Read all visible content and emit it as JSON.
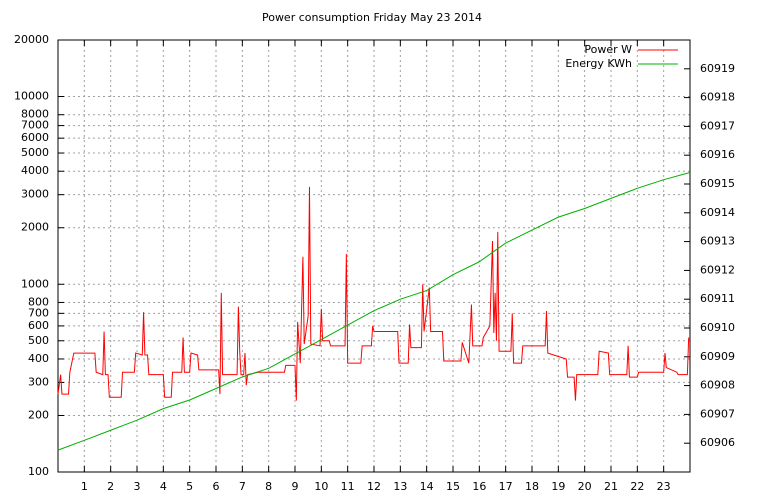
{
  "chart_data": {
    "type": "line",
    "title": "Power consumption Friday May 23 2014",
    "xlim": [
      0,
      24
    ],
    "xticks": [
      1,
      2,
      3,
      4,
      5,
      6,
      7,
      8,
      9,
      10,
      11,
      12,
      13,
      14,
      15,
      16,
      17,
      18,
      19,
      20,
      21,
      22,
      23
    ],
    "ylim": [
      100,
      20000
    ],
    "ylog": true,
    "yticks": [
      100,
      200,
      300,
      400,
      500,
      600,
      700,
      800,
      1000,
      2000,
      3000,
      4000,
      5000,
      6000,
      7000,
      8000,
      10000,
      20000
    ],
    "y2lim": [
      60905,
      60920
    ],
    "y2ticks": [
      60906,
      60907,
      60908,
      60909,
      60910,
      60911,
      60912,
      60913,
      60914,
      60915,
      60916,
      60917,
      60918,
      60919
    ],
    "grid": true,
    "legend": "top-right",
    "series": [
      {
        "name": "Power W",
        "color": "#ff0000",
        "x": [
          0.0,
          0.1,
          0.15,
          0.4,
          0.45,
          0.6,
          1.4,
          1.45,
          1.7,
          1.75,
          1.8,
          1.9,
          1.95,
          2.4,
          2.45,
          2.9,
          2.95,
          3.2,
          3.25,
          3.3,
          3.4,
          3.45,
          4.0,
          4.05,
          4.3,
          4.35,
          4.7,
          4.75,
          4.8,
          5.0,
          5.05,
          5.3,
          5.35,
          6.1,
          6.15,
          6.2,
          6.25,
          6.8,
          6.85,
          6.9,
          6.95,
          7.05,
          7.1,
          7.15,
          7.2,
          7.6,
          8.6,
          8.65,
          9.0,
          9.05,
          9.1,
          9.2,
          9.3,
          9.35,
          9.5,
          9.55,
          9.6,
          9.95,
          10.0,
          10.05,
          10.3,
          10.35,
          10.9,
          10.95,
          11.0,
          11.5,
          11.55,
          11.9,
          11.95,
          12.0,
          12.9,
          12.95,
          13.3,
          13.35,
          13.4,
          13.8,
          13.85,
          13.9,
          14.1,
          14.15,
          14.6,
          14.65,
          15.3,
          15.35,
          15.6,
          15.7,
          15.75,
          16.1,
          16.15,
          16.4,
          16.5,
          16.55,
          16.6,
          16.65,
          16.7,
          16.75,
          17.2,
          17.25,
          17.3,
          17.6,
          17.65,
          18.5,
          18.55,
          18.6,
          19.3,
          19.35,
          19.6,
          19.65,
          19.7,
          20.5,
          20.55,
          20.9,
          20.95,
          21.6,
          21.65,
          21.7,
          22.0,
          22.05,
          23.0,
          23.05,
          23.1,
          23.5,
          23.55,
          23.9,
          23.95
        ],
        "values": [
          260,
          330,
          260,
          260,
          340,
          430,
          430,
          340,
          330,
          560,
          330,
          330,
          250,
          250,
          340,
          340,
          430,
          420,
          710,
          420,
          420,
          330,
          330,
          250,
          250,
          340,
          340,
          520,
          340,
          340,
          430,
          420,
          350,
          350,
          260,
          900,
          330,
          330,
          760,
          440,
          330,
          330,
          430,
          290,
          330,
          340,
          340,
          370,
          370,
          240,
          630,
          380,
          1400,
          480,
          680,
          3300,
          480,
          470,
          740,
          500,
          500,
          470,
          470,
          1450,
          380,
          380,
          470,
          470,
          600,
          560,
          560,
          380,
          380,
          610,
          460,
          460,
          1000,
          560,
          960,
          560,
          560,
          390,
          390,
          490,
          380,
          780,
          470,
          470,
          520,
          600,
          1700,
          550,
          900,
          500,
          1900,
          440,
          440,
          700,
          380,
          380,
          470,
          470,
          720,
          430,
          400,
          320,
          320,
          240,
          330,
          330,
          440,
          430,
          330,
          330,
          470,
          320,
          320,
          340,
          340,
          430,
          360,
          340,
          330,
          330,
          520
        ]
      },
      {
        "name": "Energy KWh",
        "color": "#00b000",
        "axis": "y2",
        "x": [
          0,
          1,
          2,
          3,
          4,
          5,
          6,
          7,
          8,
          9,
          10,
          11,
          12,
          13,
          14,
          15,
          16,
          17,
          18,
          19,
          20,
          21,
          22,
          23,
          24
        ],
        "values": [
          60905.76,
          60906.1,
          60906.45,
          60906.8,
          60907.2,
          60907.5,
          60907.9,
          60908.3,
          60908.6,
          60909.1,
          60909.6,
          60910.1,
          60910.6,
          60911.0,
          60911.3,
          60911.85,
          60912.3,
          60912.95,
          60913.4,
          60913.85,
          60914.15,
          60914.5,
          60914.85,
          60915.15,
          60915.4
        ]
      }
    ]
  }
}
